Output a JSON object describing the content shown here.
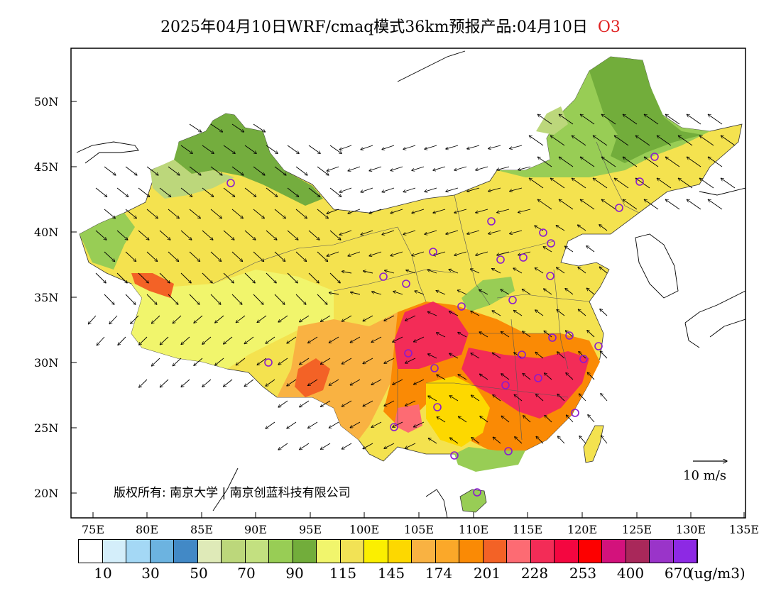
{
  "title": {
    "text": "2025年04月10日WRF/cmaq模式36km预报产品:04月10日",
    "pollutant": "O3"
  },
  "axes": {
    "lat_labels": [
      "50N",
      "45N",
      "40N",
      "35N",
      "30N",
      "25N",
      "20N"
    ],
    "lon_labels": [
      "75E",
      "80E",
      "85E",
      "90E",
      "95E",
      "100E",
      "105E",
      "110E",
      "115E",
      "120E",
      "125E",
      "130E",
      "135E"
    ],
    "lon_range": [
      73,
      135
    ],
    "lat_range": [
      18,
      54
    ]
  },
  "copyright": "版权所有: 南京大学 | 南京创蓝科技有限公司",
  "wind_scale": {
    "label": "10 m/s"
  },
  "colorbar": {
    "colors": [
      "#ffffff",
      "#d4eefa",
      "#a4d8f5",
      "#6cb3e0",
      "#4289c6",
      "#dfeab8",
      "#bcd77b",
      "#c3e080",
      "#98cd55",
      "#72ad3b",
      "#f1f56c",
      "#f2e255",
      "#fbef00",
      "#fdd800",
      "#f9b242",
      "#fba829",
      "#fa8a05",
      "#f36226",
      "#fd6b73",
      "#f32c57",
      "#f40640",
      "#fd0000",
      "#d3127c",
      "#a9285a",
      "#9a34c9",
      "#8d29e4"
    ],
    "tick_labels": [
      "10",
      "30",
      "50",
      "70",
      "90",
      "115",
      "145",
      "174",
      "201",
      "228",
      "253",
      "400",
      "670"
    ],
    "unit": "(ug/m3)"
  },
  "colors": {
    "frame": "#000000",
    "station_marker": "#8a1ad0",
    "land_base": "#f3e24a"
  },
  "icons": {
    "station": "station-circle-icon",
    "wind": "wind-arrow-icon"
  }
}
